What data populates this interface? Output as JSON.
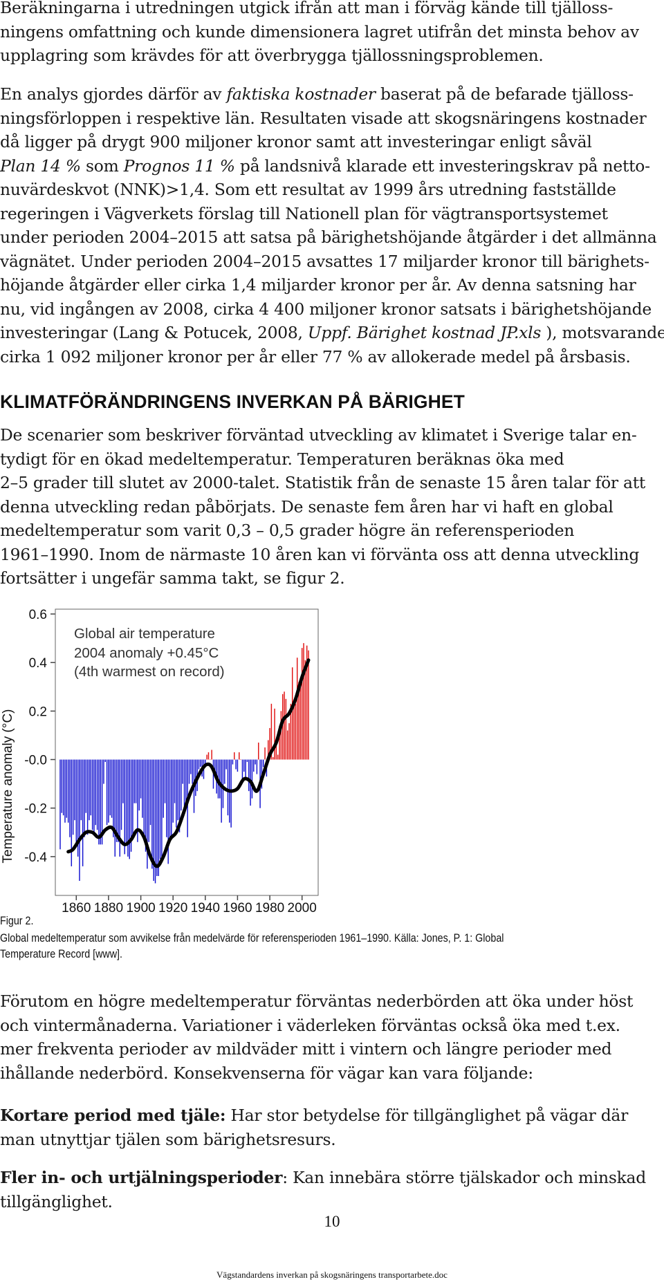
{
  "intro": {
    "p1_lines": [
      "Beräkningarna i utredningen utgick ifrån att man i förväg kände till tjälloss-",
      "ningens omfattning och kunde dimensionera lagret utifrån det minsta behov av",
      "upplagring som krävdes för att överbrygga tjällossningsproblemen."
    ],
    "p2_lines": [
      [
        "En analys gjordes därför av ",
        "faktiska kostnader",
        " baserat på de befarade tjälloss-"
      ],
      [
        "ningsförloppen i respektive län. Resultaten visade att skogsnäringens kostnader"
      ],
      [
        "då ligger på drygt 900 miljoner kronor samt att investeringar enligt såväl"
      ],
      [
        "Plan 14 %",
        " som ",
        "Prognos 11 %",
        " på landsnivå klarade ett investeringskrav på netto-"
      ],
      [
        "nuvärdeskvot (NNK)>1,4. Som ett resultat av 1999 års utredning fastställde"
      ],
      [
        "regeringen i Vägverkets förslag till Nationell plan för vägtransportsystemet"
      ],
      [
        "under perioden 2004–2015 att satsa på bärighetshöjande åtgärder i det allmänna"
      ],
      [
        "vägnätet. Under perioden 2004–2015 avsattes 17 miljarder kronor till bärighets-"
      ],
      [
        "höjande åtgärder eller cirka 1,4 miljarder kronor per år. Av denna satsning har"
      ],
      [
        "nu, vid ingången av 2008, cirka 4 400 miljoner kronor satsats i bärighetshöjande"
      ],
      [
        "investeringar (Lang & Potucek, 2008, ",
        "Uppf. Bärighet kostnad JP.xls",
        " ), motsvarande"
      ],
      [
        "cirka 1 092 miljoner kronor per år eller 77 % av allokerade medel på årsbasis."
      ]
    ]
  },
  "section": {
    "heading": "KLIMATFÖRÄNDRINGENS INVERKAN PÅ BÄRIGHET",
    "p_lines": [
      "De scenarier som beskriver förväntad utveckling av klimatet i Sverige talar en-",
      "tydigt för en ökad medeltemperatur. Temperaturen beräknas öka med",
      "2–5 grader till slutet av 2000-talet. Statistik från de senaste 15 åren talar för att",
      "denna utveckling redan påbörjats. De senaste fem åren har vi haft en global",
      "medeltemperatur som varit 0,3 – 0,5 grader högre än referensperioden",
      "1961–1990. Inom de närmaste 10 åren kan vi förvänta oss att denna utveckling",
      "fortsätter i ungefär samma takt, se figur 2."
    ]
  },
  "chart_data": {
    "type": "bar",
    "title_lines": [
      "Global air temperature",
      "2004 anomaly +0.45°C",
      "(4th warmest on record)"
    ],
    "ylabel": "Temperature anomaly (°C)",
    "ylim": [
      -0.56,
      0.62
    ],
    "xlim": [
      1847,
      2010
    ],
    "yticks": [
      "0.6",
      "0.4",
      "0.2",
      "-0.0",
      "-0.2",
      "-0.4"
    ],
    "ytick_values": [
      0.6,
      0.4,
      0.2,
      0.0,
      -0.2,
      -0.4
    ],
    "xticks": [
      "1860",
      "1880",
      "1900",
      "1920",
      "1940",
      "1960",
      "1980",
      "2000"
    ],
    "xtick_values": [
      1860,
      1880,
      1900,
      1920,
      1940,
      1960,
      1980,
      2000
    ],
    "colors": {
      "positive": "#e01010",
      "negative": "#1010d0",
      "smooth": "#000000"
    },
    "annual": {
      "start_year": 1850,
      "values": [
        -0.37,
        -0.22,
        -0.23,
        -0.26,
        -0.24,
        -0.26,
        -0.32,
        -0.44,
        -0.31,
        -0.25,
        -0.36,
        -0.4,
        -0.5,
        -0.25,
        -0.44,
        -0.32,
        -0.22,
        -0.31,
        -0.25,
        -0.23,
        -0.29,
        -0.31,
        -0.27,
        -0.29,
        -0.35,
        -0.35,
        -0.35,
        -0.1,
        -0.01,
        -0.27,
        -0.26,
        -0.23,
        -0.24,
        -0.32,
        -0.4,
        -0.34,
        -0.34,
        -0.4,
        -0.29,
        -0.18,
        -0.39,
        -0.34,
        -0.4,
        -0.41,
        -0.38,
        -0.33,
        -0.18,
        -0.18,
        -0.34,
        -0.21,
        -0.16,
        -0.24,
        -0.31,
        -0.38,
        -0.45,
        -0.34,
        -0.27,
        -0.45,
        -0.5,
        -0.51,
        -0.48,
        -0.48,
        -0.41,
        -0.4,
        -0.24,
        -0.18,
        -0.32,
        -0.43,
        -0.34,
        -0.32,
        -0.26,
        -0.18,
        -0.28,
        -0.25,
        -0.3,
        -0.21,
        -0.1,
        -0.2,
        -0.19,
        -0.32,
        -0.1,
        -0.06,
        -0.1,
        -0.22,
        -0.15,
        -0.13,
        -0.04,
        -0.03,
        -0.07,
        -0.08,
        -0.02,
        0.02,
        0.03,
        0.0,
        0.04,
        -0.12,
        -0.07,
        -0.14,
        -0.16,
        -0.16,
        -0.26,
        -0.2,
        -0.1,
        -0.04,
        -0.23,
        -0.26,
        -0.28,
        -0.02,
        0.03,
        -0.04,
        -0.05,
        0.03,
        0.0,
        -0.09,
        -0.05,
        -0.08,
        -0.01,
        -0.13,
        -0.19,
        -0.16,
        -0.05,
        -0.02,
        -0.06,
        0.07,
        -0.2,
        -0.12,
        -0.03,
        0.05,
        -0.07,
        0.08,
        0.13,
        0.23,
        0.01,
        0.21,
        0.06,
        0.02,
        0.14,
        0.2,
        0.27,
        0.28,
        0.25,
        0.12,
        0.15,
        0.23,
        0.38,
        0.22,
        0.23,
        0.42,
        0.32,
        0.31,
        0.46,
        0.48,
        0.41,
        0.47,
        0.45
      ]
    },
    "smoothed": {
      "years": [
        1855,
        1858,
        1862,
        1866,
        1870,
        1874,
        1878,
        1882,
        1886,
        1890,
        1894,
        1898,
        1902,
        1906,
        1910,
        1914,
        1918,
        1922,
        1926,
        1930,
        1934,
        1938,
        1941,
        1944,
        1948,
        1952,
        1956,
        1960,
        1964,
        1968,
        1972,
        1976,
        1980,
        1984,
        1988,
        1992,
        1996,
        2000,
        2004
      ],
      "values": [
        -0.38,
        -0.37,
        -0.33,
        -0.3,
        -0.3,
        -0.32,
        -0.29,
        -0.28,
        -0.32,
        -0.35,
        -0.33,
        -0.29,
        -0.32,
        -0.4,
        -0.44,
        -0.4,
        -0.33,
        -0.3,
        -0.23,
        -0.15,
        -0.09,
        -0.04,
        -0.02,
        -0.03,
        -0.09,
        -0.12,
        -0.13,
        -0.12,
        -0.08,
        -0.09,
        -0.13,
        -0.06,
        0.02,
        0.07,
        0.16,
        0.19,
        0.25,
        0.34,
        0.41
      ]
    }
  },
  "figure": {
    "label": "Figur 2.",
    "caption_lines": [
      "Global medeltemperatur som avvikelse från medelvärde för referensperioden 1961–1990. Källa: Jones, P. 1: Global",
      "Temperature Record [www]."
    ]
  },
  "after": {
    "p_lines": [
      "Förutom en högre medeltemperatur förväntas nederbörden att öka under höst",
      "och vintermånaderna. Variationer i väderleken förväntas också öka med t.ex.",
      "mer frekventa perioder av mildväder mitt i vintern och längre perioder med",
      "ihållande nederbörd. Konsekvenserna för vägar kan vara följande:"
    ],
    "item1": {
      "term": "Kortare period med tjäle:",
      "lines": [
        " Har stor betydelse för tillgänglighet på vägar där",
        "man utnyttjar tjälen som bärighetsresurs."
      ]
    },
    "item2": {
      "term": "Fler in- och urtjälningsperioder",
      "lines": [
        ": Kan innebära större tjälskador och minskad",
        "tillgänglighet."
      ]
    }
  },
  "page_number": "10",
  "footer": "Vägstandardens inverkan på skogsnäringens transportarbete.doc"
}
